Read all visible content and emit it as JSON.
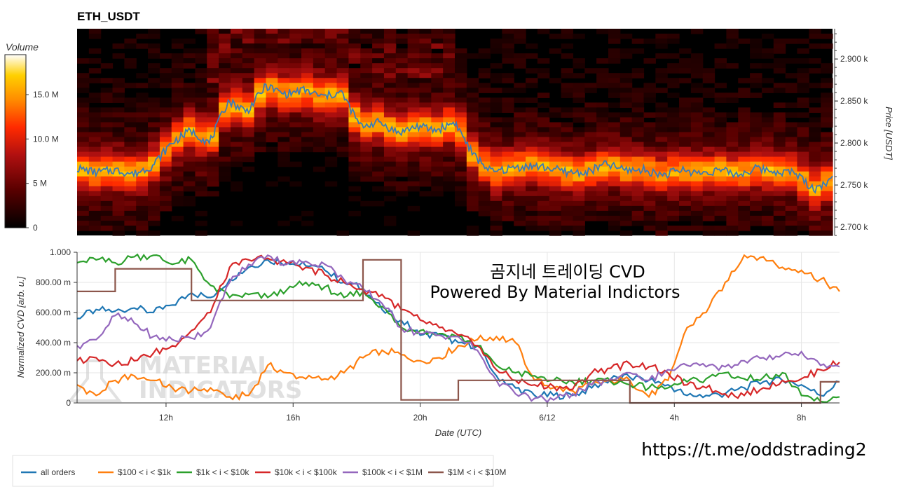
{
  "chart_data": [
    {
      "type": "heatmap",
      "title": "ETH_USDT",
      "y_axis_label": "Price [USDT]",
      "y_ticks": [
        "2.700 k",
        "2.750 k",
        "2.800 k",
        "2.850 k",
        "2.900 k"
      ],
      "ylim": [
        2690,
        2936
      ],
      "colorbar": {
        "title": "Volume",
        "ticks": [
          "0",
          "5 M",
          "10.0 M",
          "15.0 M"
        ],
        "range": [
          0,
          19500000
        ],
        "colors": [
          "#000000",
          "#5a0000",
          "#b01010",
          "#ff2a00",
          "#ff8c00",
          "#ffd000",
          "#ffffff"
        ]
      },
      "price_series": {
        "name": "price",
        "color": "#3b7ab8",
        "x_hours": [
          0,
          0.6,
          1.2,
          1.8,
          2.4,
          3.0,
          3.6,
          4.2,
          4.8,
          5.4,
          6.0,
          6.6,
          7.2,
          7.8,
          8.4,
          9.0,
          9.6,
          10.2,
          10.8,
          11.4,
          12.0,
          12.6,
          13.2,
          13.8,
          14.4,
          15.0,
          15.6,
          16.2,
          16.8,
          17.4,
          18.0,
          18.6,
          19.2,
          19.8,
          20.4,
          21.0,
          21.6,
          22.2,
          22.8,
          23.4,
          24.0
        ],
        "y": [
          2770,
          2765,
          2768,
          2763,
          2773,
          2800,
          2815,
          2800,
          2850,
          2838,
          2868,
          2858,
          2863,
          2855,
          2860,
          2820,
          2825,
          2812,
          2820,
          2815,
          2825,
          2785,
          2765,
          2770,
          2773,
          2770,
          2765,
          2765,
          2775,
          2768,
          2768,
          2762,
          2768,
          2764,
          2768,
          2762,
          2770,
          2766,
          2765,
          2745,
          2757
        ]
      }
    },
    {
      "type": "line",
      "y_axis_label": "Normalized CVD [arb. u.]",
      "x_axis_label": "Date (UTC)",
      "x_ticks": [
        "12h",
        "16h",
        "20h",
        "6/12",
        "4h",
        "8h"
      ],
      "x_tick_hours": [
        2.8,
        6.8,
        10.8,
        14.8,
        18.8,
        22.8
      ],
      "y_ticks": [
        "0",
        "200.00 m",
        "400.00 m",
        "600.00 m",
        "800.00 m",
        "1.000"
      ],
      "ylim": [
        0,
        1
      ],
      "grid": true,
      "legend_position": "bottom",
      "x_hours": [
        0,
        0.6,
        1.2,
        1.8,
        2.4,
        3.0,
        3.6,
        4.2,
        4.8,
        5.4,
        6.0,
        6.6,
        7.2,
        7.8,
        8.4,
        9.0,
        9.6,
        10.2,
        10.8,
        11.4,
        12.0,
        12.6,
        13.2,
        13.8,
        14.4,
        15.0,
        15.6,
        16.2,
        16.8,
        17.4,
        18.0,
        18.6,
        19.2,
        19.8,
        20.4,
        21.0,
        21.6,
        22.2,
        22.8,
        23.4,
        24.0
      ],
      "series": [
        {
          "name": "all orders",
          "color": "#1f77b4",
          "values": [
            0.56,
            0.62,
            0.61,
            0.63,
            0.6,
            0.65,
            0.73,
            0.7,
            0.82,
            0.9,
            0.95,
            0.93,
            0.91,
            0.88,
            0.8,
            0.76,
            0.62,
            0.55,
            0.45,
            0.45,
            0.4,
            0.38,
            0.18,
            0.1,
            0.05,
            0.05,
            0.05,
            0.1,
            0.16,
            0.17,
            0.15,
            0.12,
            0.05,
            0.05,
            0.06,
            0.1,
            0.14,
            0.15,
            0.12,
            0.05,
            0.14
          ]
        },
        {
          "name": "$100 < i < $1k",
          "color": "#ff7f0e",
          "values": [
            0.12,
            0.05,
            0.15,
            0.18,
            0.15,
            0.1,
            0.08,
            0.1,
            0.04,
            0.05,
            0.25,
            0.2,
            0.16,
            0.16,
            0.2,
            0.3,
            0.35,
            0.32,
            0.28,
            0.3,
            0.38,
            0.42,
            0.44,
            0.4,
            0.15,
            0.1,
            0.08,
            0.12,
            0.15,
            0.15,
            0.04,
            0.15,
            0.5,
            0.6,
            0.8,
            0.98,
            0.97,
            0.9,
            0.88,
            0.82,
            0.74
          ]
        },
        {
          "name": "$1k < i < $10k",
          "color": "#2ca02c",
          "values": [
            0.93,
            0.95,
            0.93,
            0.97,
            0.98,
            0.92,
            0.95,
            0.78,
            0.7,
            0.72,
            0.7,
            0.75,
            0.8,
            0.77,
            0.7,
            0.74,
            0.64,
            0.5,
            0.48,
            0.46,
            0.44,
            0.38,
            0.25,
            0.2,
            0.18,
            0.15,
            0.14,
            0.15,
            0.14,
            0.12,
            0.1,
            0.1,
            0.14,
            0.16,
            0.2,
            0.16,
            0.17,
            0.2,
            0.05,
            0.01,
            0.04
          ]
        },
        {
          "name": "$10k < i < $100k",
          "color": "#d62728",
          "values": [
            0.28,
            0.3,
            0.26,
            0.28,
            0.33,
            0.38,
            0.48,
            0.6,
            0.9,
            0.95,
            0.96,
            0.93,
            0.9,
            0.85,
            0.8,
            0.75,
            0.72,
            0.62,
            0.55,
            0.5,
            0.45,
            0.38,
            0.22,
            0.15,
            0.12,
            0.11,
            0.09,
            0.2,
            0.23,
            0.26,
            0.24,
            0.2,
            0.12,
            0.1,
            0.06,
            0.05,
            0.1,
            0.15,
            0.16,
            0.22,
            0.27
          ]
        },
        {
          "name": "$100k < i < $1M",
          "color": "#9467bd",
          "values": [
            0.38,
            0.42,
            0.58,
            0.53,
            0.44,
            0.42,
            0.43,
            0.5,
            0.8,
            0.92,
            0.98,
            0.92,
            0.94,
            0.92,
            0.82,
            0.76,
            0.66,
            0.5,
            0.46,
            0.45,
            0.44,
            0.35,
            0.15,
            0.06,
            0.03,
            0.02,
            0.06,
            0.12,
            0.16,
            0.2,
            0.15,
            0.22,
            0.25,
            0.24,
            0.24,
            0.28,
            0.3,
            0.32,
            0.34,
            0.25,
            0.24
          ]
        },
        {
          "name": "$1M < i < $10M",
          "color": "#8c564b",
          "values": [
            0.74,
            0.74,
            0.89,
            0.89,
            0.89,
            0.89,
            0.68,
            0.68,
            0.68,
            0.68,
            0.68,
            0.68,
            0.68,
            0.68,
            0.68,
            0.95,
            0.95,
            0.02,
            0.02,
            0.02,
            0.15,
            0.15,
            0.15,
            0.15,
            0.15,
            0.15,
            0.15,
            0.15,
            0.15,
            0.0,
            0.0,
            0.0,
            0.0,
            0.0,
            0.0,
            0.0,
            0.0,
            0.0,
            0.0,
            0.14,
            0.14
          ]
        }
      ]
    }
  ],
  "overlay": {
    "line1": "곰지네 트레이딩 CVD",
    "line2": "Powered By Material Indictors",
    "watermark_top": "MATERIAL",
    "watermark_bottom": "INDICATORS",
    "url": "https://t.me/oddstrading2"
  }
}
